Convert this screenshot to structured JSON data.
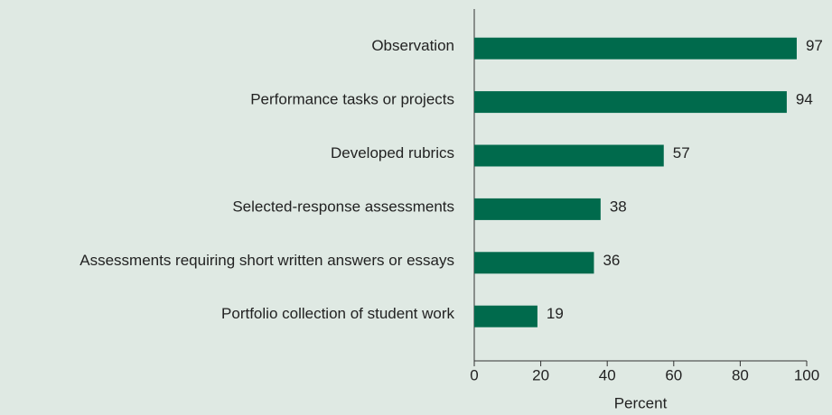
{
  "chart_data": {
    "type": "bar",
    "orientation": "horizontal",
    "categories": [
      "Observation",
      "Performance tasks or projects",
      "Developed rubrics",
      "Selected-response assessments",
      "Assessments requiring short written answers or essays",
      "Portfolio collection of student work"
    ],
    "values": [
      97,
      94,
      57,
      38,
      36,
      19
    ],
    "color": "#006a4c",
    "x_label": "Percent",
    "xlim": [
      0,
      100
    ],
    "xticks": [
      0,
      20,
      40,
      60,
      80,
      100
    ],
    "grid": false
  }
}
